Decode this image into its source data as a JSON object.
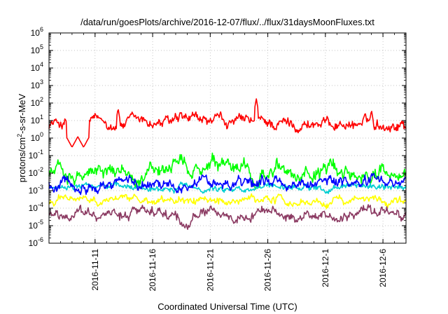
{
  "chart_data": {
    "type": "line",
    "title": "/data/run/goesPlots/archive/2016-12-07/flux/../flux/31daysMoonFluxes.txt",
    "xlabel": "Coordinated Universal Time (UTC)",
    "ylabel": "protons/cm2-s-sr-MeV",
    "ylabel_parts": {
      "base": "protons/cm",
      "sup": "2",
      "rest": "-s-sr-MeV"
    },
    "yscale": "log",
    "ylim": [
      1e-06,
      1000000.0
    ],
    "y_ticks": [
      {
        "value": 1e-06,
        "base": "10",
        "exp": "-6"
      },
      {
        "value": 1e-05,
        "base": "10",
        "exp": "-5"
      },
      {
        "value": 0.0001,
        "base": "10",
        "exp": "-4"
      },
      {
        "value": 0.001,
        "base": "10",
        "exp": "-3"
      },
      {
        "value": 0.01,
        "base": "10",
        "exp": "-2"
      },
      {
        "value": 0.1,
        "base": "10",
        "exp": "-1"
      },
      {
        "value": 1,
        "base": "10",
        "exp": "0"
      },
      {
        "value": 10,
        "base": "10",
        "exp": "1"
      },
      {
        "value": 100,
        "base": "10",
        "exp": "2"
      },
      {
        "value": 1000,
        "base": "10",
        "exp": "3"
      },
      {
        "value": 10000,
        "base": "10",
        "exp": "4"
      },
      {
        "value": 100000,
        "base": "10",
        "exp": "5"
      },
      {
        "value": 1000000,
        "base": "10",
        "exp": "6"
      }
    ],
    "xlim": [
      "2016-11-07",
      "2016-12-08"
    ],
    "x_ticks": [
      "2016-11-11",
      "2016-11-16",
      "2016-11-21",
      "2016-11-26",
      "2016-12-1",
      "2016-12-6"
    ],
    "x_tick_dates": [
      "2016-11-11",
      "2016-11-16",
      "2016-11-21",
      "2016-11-26",
      "2016-12-01",
      "2016-12-06"
    ],
    "grid": true,
    "legend": "none",
    "series": [
      {
        "color": "#ff0000",
        "level": 7,
        "spread": 0.35,
        "spikes": [
          [
            "2016-11-25",
            180
          ],
          [
            "2016-11-13",
            50
          ],
          [
            "2016-12-05",
            40
          ]
        ],
        "dips": [
          [
            "2016-11-09",
            0.3
          ],
          [
            "2016-11-10",
            0.3
          ]
        ]
      },
      {
        "color": "#00ff00",
        "level": 0.012,
        "spread": 0.45,
        "spikes": [],
        "dips": []
      },
      {
        "color": "#00ced1",
        "level": 0.0015,
        "spread": 0.2,
        "spikes": [],
        "dips": []
      },
      {
        "color": "#0000ff",
        "level": 0.003,
        "spread": 0.35,
        "spikes": [],
        "dips": []
      },
      {
        "color": "#ffff00",
        "level": 0.00025,
        "spread": 0.25,
        "spikes": [],
        "dips": []
      },
      {
        "color": "#8b3a62",
        "level": 5e-05,
        "spread": 0.35,
        "spikes": [],
        "dips": []
      }
    ]
  }
}
